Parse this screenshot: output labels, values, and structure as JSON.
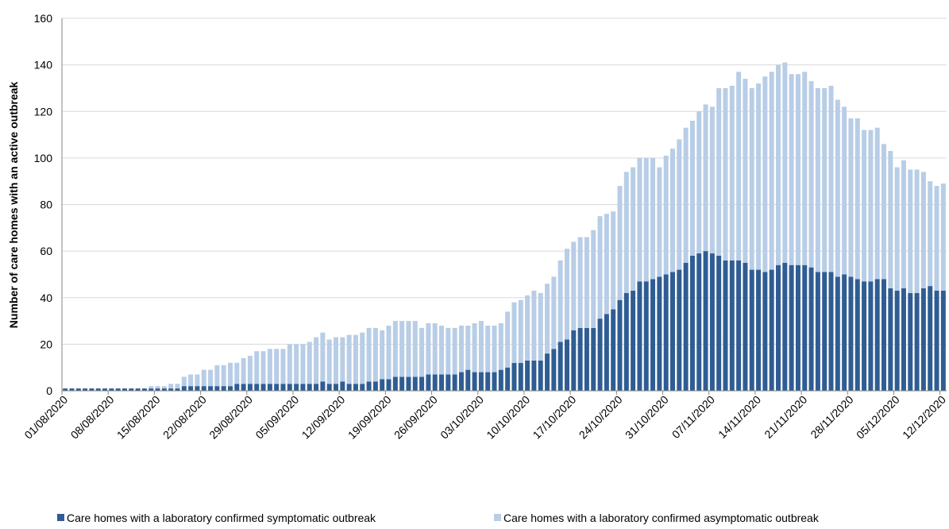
{
  "chart_data": {
    "type": "stacked-bar",
    "y_label": "Number of care homes with an active outbreak",
    "categories": [
      "01/08/2020",
      null,
      null,
      null,
      null,
      null,
      null,
      "08/08/2020",
      null,
      null,
      null,
      null,
      null,
      null,
      "15/08/2020",
      null,
      null,
      null,
      null,
      null,
      null,
      "22/08/2020",
      null,
      null,
      null,
      null,
      null,
      null,
      "29/08/2020",
      null,
      null,
      null,
      null,
      null,
      null,
      "05/09/2020",
      null,
      null,
      null,
      null,
      null,
      null,
      "12/09/2020",
      null,
      null,
      null,
      null,
      null,
      null,
      "19/09/2020",
      null,
      null,
      null,
      null,
      null,
      null,
      "26/09/2020",
      null,
      null,
      null,
      null,
      null,
      null,
      "03/10/2020",
      null,
      null,
      null,
      null,
      null,
      null,
      "10/10/2020",
      null,
      null,
      null,
      null,
      null,
      null,
      "17/10/2020",
      null,
      null,
      null,
      null,
      null,
      null,
      "24/10/2020",
      null,
      null,
      null,
      null,
      null,
      null,
      "31/10/2020",
      null,
      null,
      null,
      null,
      null,
      null,
      "07/11/2020",
      null,
      null,
      null,
      null,
      null,
      null,
      "14/11/2020",
      null,
      null,
      null,
      null,
      null,
      null,
      "21/11/2020",
      null,
      null,
      null,
      null,
      null,
      null,
      "28/11/2020",
      null,
      null,
      null,
      null,
      null,
      null,
      "05/12/2020",
      null,
      null,
      null,
      null,
      null,
      null,
      "12/12/2020"
    ],
    "series": [
      {
        "name": "Care homes with a laboratory confirmed symptomatic outbreak",
        "color": "#2f5d93",
        "values": [
          1,
          1,
          1,
          1,
          1,
          1,
          1,
          1,
          1,
          1,
          1,
          1,
          1,
          1,
          1,
          1,
          1,
          1,
          2,
          2,
          2,
          2,
          2,
          2,
          2,
          2,
          3,
          3,
          3,
          3,
          3,
          3,
          3,
          3,
          3,
          3,
          3,
          3,
          3,
          4,
          3,
          3,
          4,
          3,
          3,
          3,
          4,
          4,
          5,
          5,
          6,
          6,
          6,
          6,
          6,
          7,
          7,
          7,
          7,
          7,
          8,
          9,
          8,
          8,
          8,
          8,
          9,
          10,
          12,
          12,
          13,
          13,
          13,
          16,
          18,
          21,
          22,
          26,
          27,
          27,
          27,
          31,
          33,
          35,
          39,
          42,
          43,
          47,
          47,
          48,
          49,
          50,
          51,
          52,
          55,
          58,
          59,
          60,
          59,
          58,
          56,
          56,
          56,
          55,
          52,
          52,
          51,
          52,
          54,
          55,
          54,
          54,
          54,
          53,
          51,
          51,
          51,
          49,
          50,
          49,
          48,
          47,
          47,
          48,
          48,
          44,
          43,
          44,
          42,
          42,
          44,
          45,
          43,
          43
        ]
      },
      {
        "name": "Care homes with a laboratory confirmed asymptomatic outbreak",
        "color": "#b8cde6",
        "values": [
          0,
          0,
          0,
          0,
          0,
          0,
          0,
          0,
          0,
          0,
          0,
          0,
          0,
          1,
          1,
          1,
          2,
          2,
          4,
          5,
          5,
          7,
          7,
          9,
          9,
          10,
          9,
          11,
          12,
          14,
          14,
          15,
          15,
          15,
          17,
          17,
          17,
          18,
          20,
          21,
          19,
          20,
          19,
          21,
          21,
          22,
          23,
          23,
          21,
          23,
          24,
          24,
          24,
          24,
          21,
          22,
          22,
          21,
          20,
          20,
          20,
          19,
          21,
          22,
          20,
          20,
          20,
          24,
          26,
          27,
          28,
          30,
          29,
          30,
          31,
          35,
          39,
          38,
          39,
          39,
          42,
          44,
          43,
          42,
          49,
          52,
          53,
          53,
          53,
          52,
          47,
          51,
          53,
          56,
          58,
          58,
          61,
          63,
          63,
          72,
          74,
          75,
          81,
          79,
          78,
          80,
          84,
          85,
          86,
          86,
          82,
          82,
          83,
          80,
          79,
          79,
          80,
          76,
          72,
          68,
          69,
          65,
          65,
          65,
          58,
          59,
          53,
          55,
          53,
          53,
          50,
          45,
          45,
          46
        ]
      }
    ],
    "ylim": [
      0,
      160
    ],
    "yticks": [
      0,
      20,
      40,
      60,
      80,
      100,
      120,
      140,
      160
    ],
    "grid": true,
    "legend": "bottom"
  }
}
